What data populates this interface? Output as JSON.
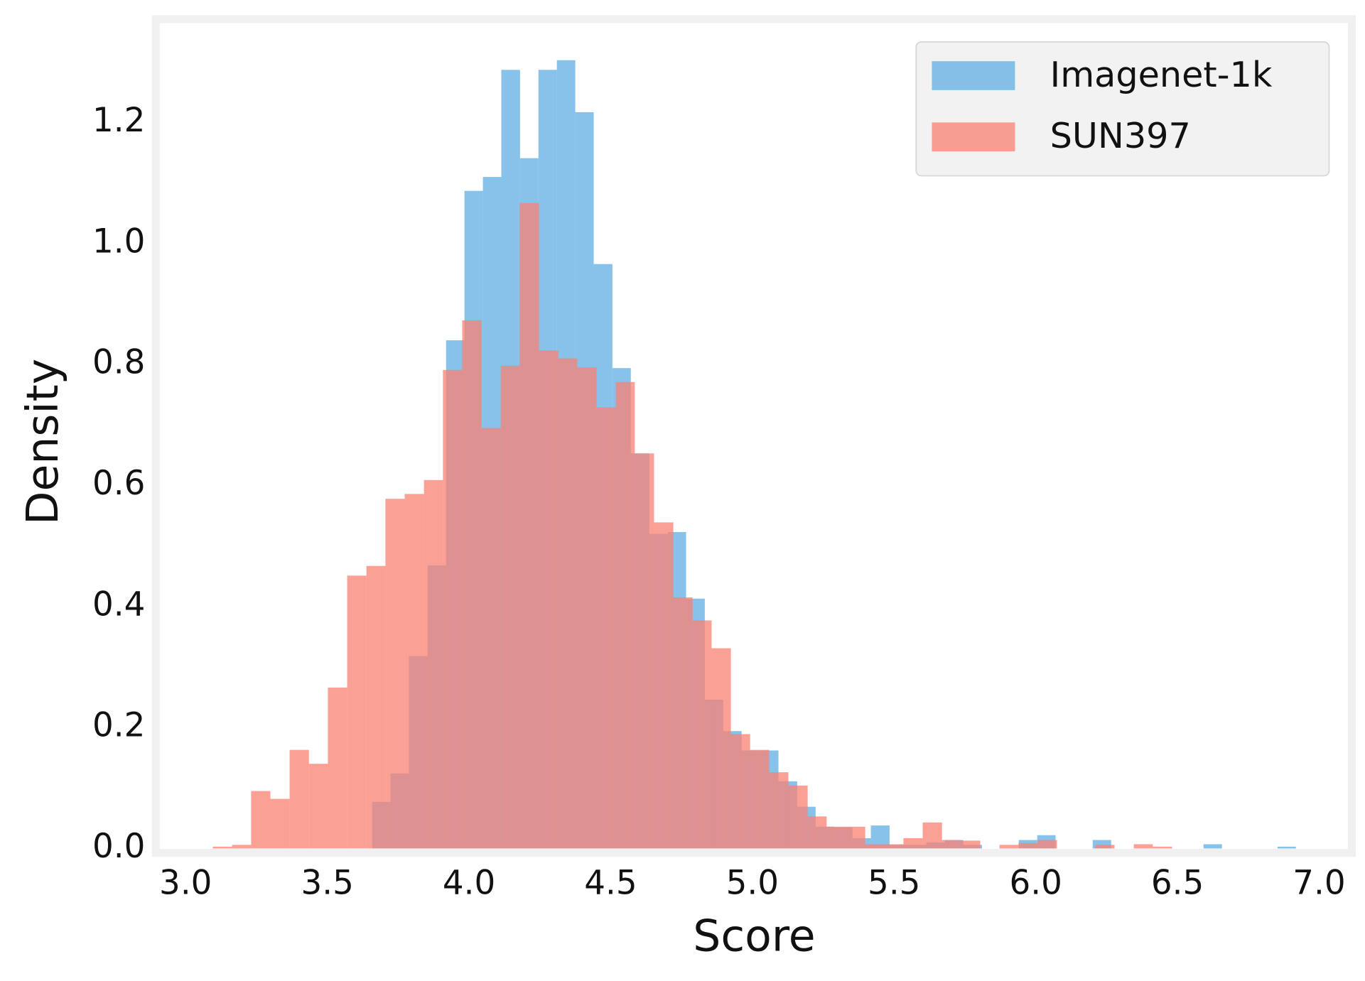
{
  "chart_data": {
    "type": "histogram",
    "x_label": "Score",
    "y_label": "Density",
    "xlim": [
      2.91,
      7.1
    ],
    "ylim": [
      0,
      1.362
    ],
    "xticks": [
      {
        "value": 3.0,
        "label": "3.0"
      },
      {
        "value": 3.5,
        "label": "3.5"
      },
      {
        "value": 4.0,
        "label": "4.0"
      },
      {
        "value": 4.5,
        "label": "4.5"
      },
      {
        "value": 5.0,
        "label": "5.0"
      },
      {
        "value": 5.5,
        "label": "5.5"
      },
      {
        "value": 6.0,
        "label": "6.0"
      },
      {
        "value": 6.5,
        "label": "6.5"
      },
      {
        "value": 7.0,
        "label": "7.0"
      }
    ],
    "yticks": [
      {
        "value": 0,
        "label": "0.0"
      },
      {
        "value": 0.2,
        "label": "0.2"
      },
      {
        "value": 0.4,
        "label": "0.4"
      },
      {
        "value": 0.6,
        "label": "0.6"
      },
      {
        "value": 0.8,
        "label": "0.8"
      },
      {
        "value": 1.0,
        "label": "1.0"
      },
      {
        "value": 1.2,
        "label": "1.2"
      }
    ],
    "grid": false,
    "legend": "upper right",
    "series": [
      {
        "name": "Imagenet-1k",
        "color": "#5dade2",
        "bins": [
          3.658,
          3.723,
          3.788,
          3.854,
          3.919,
          3.984,
          4.049,
          4.114,
          4.18,
          4.245,
          4.31,
          4.375,
          4.44,
          4.506,
          4.571,
          4.636,
          4.701,
          4.766,
          4.832,
          4.897,
          4.962,
          5.027,
          5.092,
          5.158,
          5.223,
          5.288,
          5.353,
          5.418,
          5.484,
          5.549,
          5.614,
          5.679,
          5.744,
          5.81,
          5.875,
          5.94,
          6.005,
          6.07,
          6.136,
          6.201,
          6.266,
          6.331,
          6.396,
          6.462,
          6.527,
          6.592,
          6.657,
          6.722,
          6.788,
          6.853,
          6.918
        ],
        "values": [
          0.077,
          0.124,
          0.318,
          0.468,
          0.84,
          1.087,
          1.11,
          1.287,
          1.141,
          1.287,
          1.303,
          1.217,
          0.966,
          0.794,
          0.653,
          0.52,
          0.523,
          0.413,
          0.246,
          0.194,
          0.162,
          0.162,
          0.111,
          0.069,
          0.036,
          0.035,
          0.017,
          0.038,
          0.006,
          0.006,
          0.01,
          0.014,
          0.006,
          0,
          0,
          0.014,
          0.022,
          0,
          0,
          0.014,
          0,
          0,
          0,
          0,
          0,
          0.007,
          0,
          0,
          0,
          0.003
        ]
      },
      {
        "name": "SUN397",
        "color": "#fa8072",
        "bins": [
          3.096,
          3.164,
          3.231,
          3.299,
          3.367,
          3.435,
          3.502,
          3.57,
          3.638,
          3.705,
          3.773,
          3.841,
          3.908,
          3.976,
          4.044,
          4.112,
          4.179,
          4.247,
          4.315,
          4.382,
          4.45,
          4.518,
          4.585,
          4.653,
          4.721,
          4.789,
          4.856,
          4.924,
          4.992,
          5.059,
          5.127,
          5.195,
          5.262,
          5.33,
          5.398,
          5.466,
          5.533,
          5.601,
          5.669,
          5.736,
          5.804,
          5.872,
          5.939,
          6.007,
          6.075,
          6.143,
          6.21,
          6.278,
          6.346,
          6.413,
          6.481
        ],
        "values": [
          0.003,
          0.006,
          0.095,
          0.082,
          0.163,
          0.14,
          0.266,
          0.451,
          0.467,
          0.578,
          0.586,
          0.609,
          0.791,
          0.873,
          0.695,
          0.798,
          1.067,
          0.823,
          0.81,
          0.795,
          0.729,
          0.771,
          0.653,
          0.539,
          0.415,
          0.377,
          0.331,
          0.189,
          0.163,
          0.126,
          0.104,
          0.053,
          0.036,
          0.036,
          0.007,
          0.007,
          0.017,
          0.043,
          0.014,
          0.013,
          0,
          0.006,
          0.009,
          0.014,
          0,
          0,
          0.006,
          0,
          0.007,
          0.003
        ]
      }
    ]
  }
}
